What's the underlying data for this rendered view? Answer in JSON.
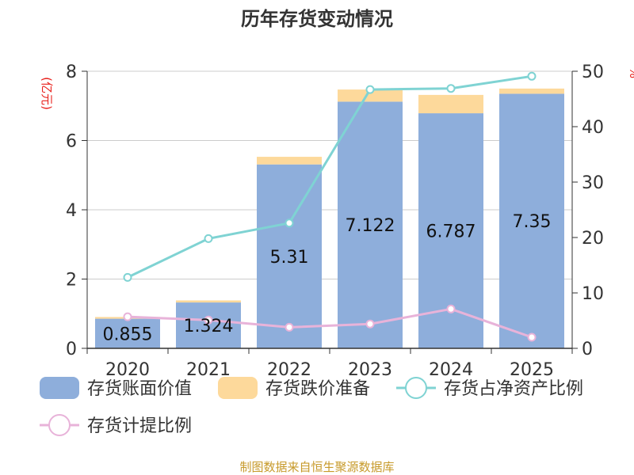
{
  "chart_data": {
    "type": "bar",
    "title": "历年存货变动情况",
    "categories": [
      "2020",
      "2021",
      "2022",
      "2023",
      "2024",
      "2025"
    ],
    "y_left": {
      "unit": "(亿元)",
      "ylim": [
        0,
        8
      ],
      "ticks": [
        "0",
        "2",
        "4",
        "6",
        "8"
      ]
    },
    "y_right": {
      "unit": "%",
      "ylim": [
        0,
        50
      ],
      "ticks": [
        "0",
        "10",
        "20",
        "30",
        "40",
        "50"
      ]
    },
    "series": [
      {
        "name": "存货账面价值",
        "type": "bar",
        "axis": "left",
        "color": "#8eaedb",
        "values": [
          0.855,
          1.324,
          5.31,
          7.122,
          6.787,
          7.35
        ],
        "labels": [
          "0.855",
          "1.324",
          "5.31",
          "7.122",
          "6.787",
          "7.35"
        ]
      },
      {
        "name": "存货跌价准备",
        "type": "bar-stacked",
        "axis": "left",
        "color": "#fdd99b",
        "values": [
          0.05,
          0.06,
          0.22,
          0.35,
          0.53,
          0.15
        ]
      },
      {
        "name": "存货占净资产比例",
        "type": "line",
        "axis": "right",
        "color": "#7fd3d3",
        "values": [
          12.8,
          19.8,
          22.6,
          46.7,
          46.9,
          49.1
        ]
      },
      {
        "name": "存货计提比例",
        "type": "line",
        "axis": "right",
        "color": "#e8b3d9",
        "values": [
          5.7,
          5.1,
          3.8,
          4.4,
          7.1,
          2.0
        ]
      }
    ],
    "grid": true,
    "legend": "bottom"
  },
  "source": "制图数据来自恒生聚源数据库"
}
